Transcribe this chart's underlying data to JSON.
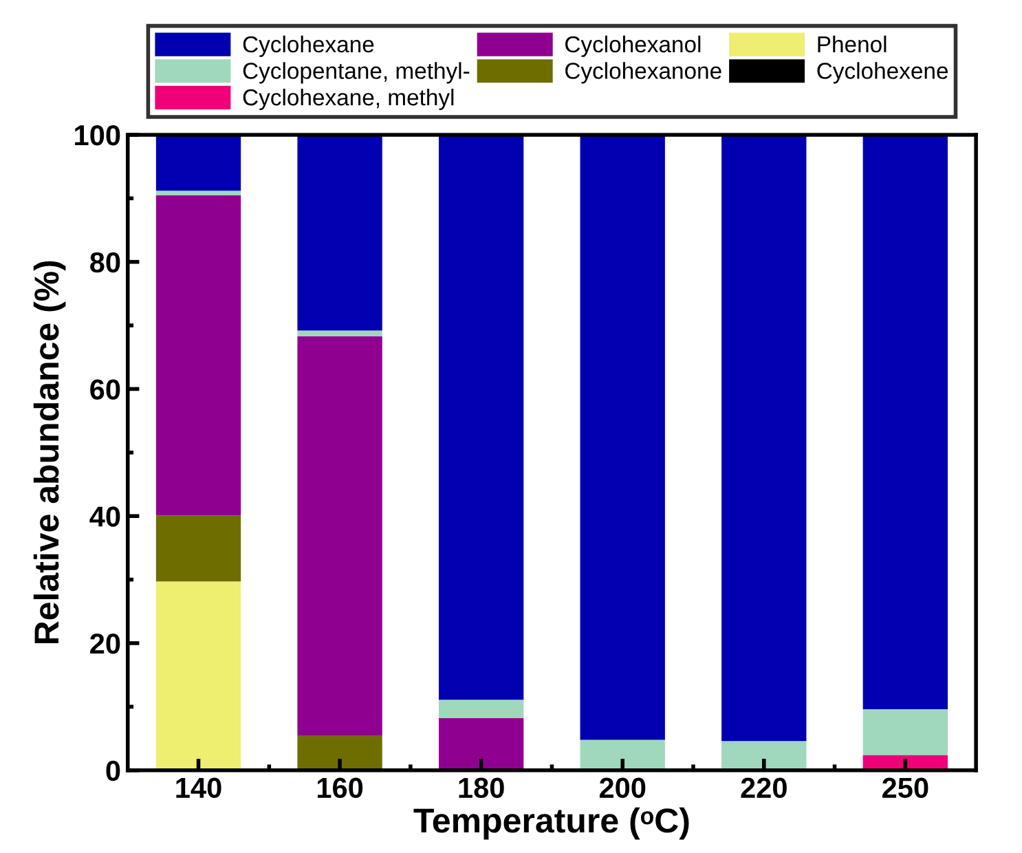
{
  "chart_data": {
    "type": "bar",
    "stacked": true,
    "xlabel": "Temperature (ᵒC)",
    "ylabel": "Relative abundance (%)",
    "categories": [
      "140",
      "160",
      "180",
      "200",
      "220",
      "250"
    ],
    "series": [
      {
        "name": "Cyclohexene",
        "color": "#000000",
        "values": [
          null,
          null,
          null,
          null,
          null,
          null
        ]
      },
      {
        "name": "Phenol",
        "color": "#eeee70",
        "values": [
          29.7,
          0,
          0,
          0,
          0,
          0
        ]
      },
      {
        "name": "Cyclohexanone",
        "color": "#6e6e00",
        "values": [
          10.4,
          5.4,
          0,
          0,
          0,
          0
        ]
      },
      {
        "name": "Cyclohexanol",
        "color": "#900090",
        "values": [
          50.4,
          62.9,
          8.2,
          0,
          0,
          0
        ]
      },
      {
        "name": "Cyclohexane, methyl",
        "color": "#f00078",
        "values": [
          0,
          0,
          0,
          0,
          0,
          2.4
        ]
      },
      {
        "name": "Cyclopentane, methyl-",
        "color": "#9fd8bc",
        "values": [
          0.7,
          0.9,
          2.9,
          4.8,
          4.6,
          7.2
        ]
      },
      {
        "name": "Cyclohexane",
        "color": "#0000b0",
        "values": [
          8.8,
          30.8,
          88.9,
          95.2,
          95.4,
          90.4
        ]
      }
    ],
    "ylim": [
      0,
      100
    ],
    "yticks": [
      0,
      20,
      40,
      60,
      80,
      100
    ],
    "grid": false,
    "legend": "top"
  }
}
